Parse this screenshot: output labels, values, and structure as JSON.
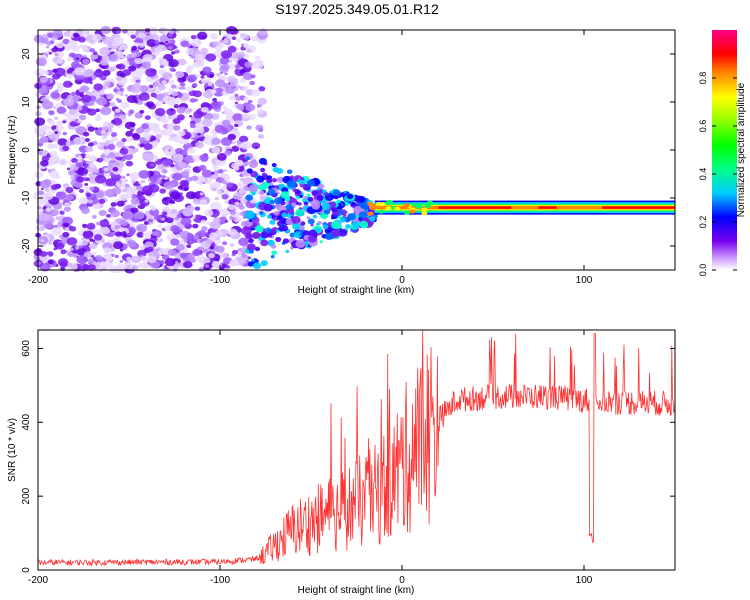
{
  "title": "S197.2025.349.05.01.R12",
  "chart_data": [
    {
      "type": "heatmap",
      "xlabel": "Height of straight line (km)",
      "ylabel": "Frequency (Hz)",
      "xlim": [
        -200,
        150
      ],
      "ylim": [
        -25,
        25
      ],
      "xticks": [
        -200,
        -100,
        0,
        100
      ],
      "yticks": [
        -20,
        -10,
        0,
        10,
        20
      ],
      "colorbar": {
        "label": "Normalized spectral amplitude",
        "range": [
          0,
          1
        ],
        "ticks": [
          0.0,
          0.2,
          0.4,
          0.6,
          0.8
        ]
      },
      "features": [
        {
          "name": "noise",
          "x_range": [
            -200,
            -85
          ],
          "freq_range": [
            -25,
            25
          ],
          "amplitude": 0.15
        },
        {
          "name": "transition",
          "x_range": [
            -85,
            -15
          ],
          "freq_center": -13,
          "amplitude": 0.3
        },
        {
          "name": "carrier-line",
          "x_range": [
            -15,
            150
          ],
          "freq_center": -12,
          "amplitude": 0.95
        }
      ]
    },
    {
      "type": "line",
      "xlabel": "Height of straight line (km)",
      "ylabel": "SNR (10 * v/v)",
      "xlim": [
        -200,
        150
      ],
      "ylim": [
        0,
        650
      ],
      "xticks": [
        -200,
        -100,
        0,
        100
      ],
      "yticks": [
        0,
        200,
        400,
        600
      ],
      "color": "#ff3333",
      "series": [
        {
          "name": "SNR",
          "profile": [
            [
              -200,
              20
            ],
            [
              -100,
              22
            ],
            [
              -80,
              30
            ],
            [
              -75,
              45
            ],
            [
              -60,
              110
            ],
            [
              -40,
              150
            ],
            [
              -25,
              180
            ],
            [
              -15,
              200
            ],
            [
              -5,
              250
            ],
            [
              5,
              320
            ],
            [
              15,
              380
            ],
            [
              30,
              460
            ],
            [
              50,
              470
            ],
            [
              80,
              470
            ],
            [
              100,
              460
            ],
            [
              120,
              455
            ],
            [
              150,
              450
            ]
          ]
        }
      ]
    }
  ]
}
